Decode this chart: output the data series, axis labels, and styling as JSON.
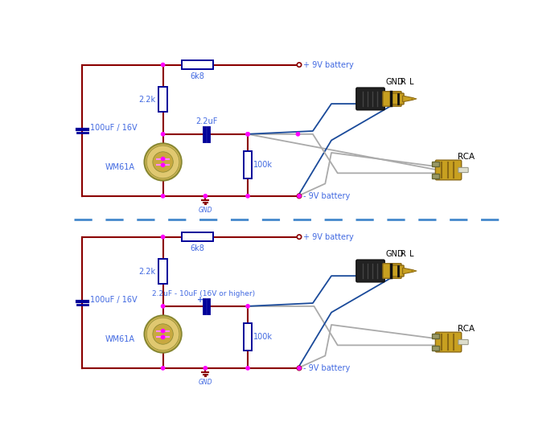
{
  "bg_color": "#ffffff",
  "wire_color": "#8B0000",
  "wire_blue": "#1a4a9a",
  "wire_gray": "#aaaaaa",
  "node_color": "#FF00FF",
  "comp_color": "#000099",
  "text_blue": "#4169E1",
  "dash_color": "#4488cc",
  "circuit1": {
    "r6k8": "6k8",
    "r22k": "2.2k",
    "r100k": "100k",
    "c100uF": "100uF / 16V",
    "c22uF": "2.2uF",
    "mic": "WM61A",
    "bat_pos": "+ 9V battery",
    "bat_neg": "- 9V battery",
    "gnd": "GND",
    "gnd_r_l": [
      "GND",
      "R",
      "L"
    ],
    "rca": "RCA"
  },
  "circuit2": {
    "r6k8": "6k8",
    "r22k": "2.2k",
    "r100k": "100k",
    "c100uF": "100uF / 16V",
    "c22uF": "2.2uF - 10uF (16V or higher)",
    "mic": "WM61A",
    "bat_pos": "+ 9V battery",
    "bat_neg": "- 9V battery",
    "gnd": "GND",
    "gnd_r_l": [
      "GND",
      "R",
      "L"
    ],
    "rca": "RCA"
  },
  "plug_black_color": "#222222",
  "plug_gold_color": "#C8A020",
  "plug_gold_dark": "#8B6914",
  "rca_gold": "#C8A020",
  "rca_silver": "#888888",
  "rca_dark": "#8B6914"
}
